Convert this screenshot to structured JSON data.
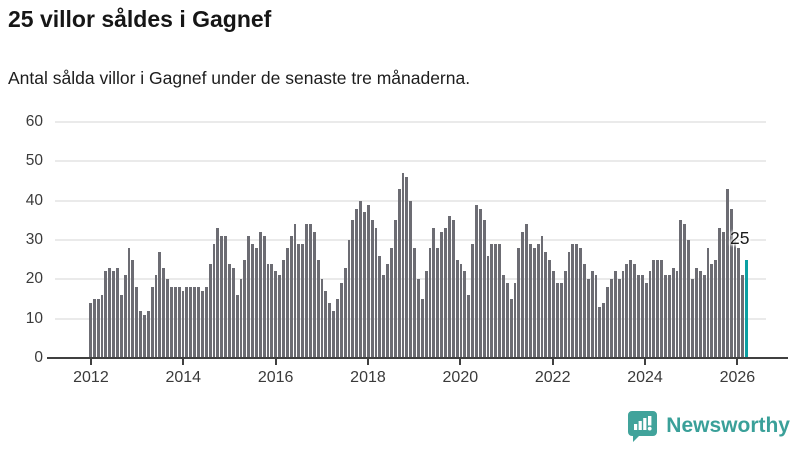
{
  "header": {
    "title": "25 villor såldes i Gagnef",
    "subtitle": "Antal sålda villor i Gagnef under de senaste tre månaderna."
  },
  "chart_data": {
    "type": "bar",
    "title": "25 villor såldes i Gagnef",
    "subtitle": "Antal sålda villor i Gagnef under de senaste tre månaderna.",
    "xlabel": "",
    "ylabel": "",
    "x_start": "2012-01",
    "x_interval": "monthly",
    "ylim": [
      0,
      60
    ],
    "yticks": [
      0,
      10,
      20,
      30,
      40,
      50,
      60
    ],
    "xticks": [
      2012,
      2014,
      2016,
      2018,
      2020,
      2022,
      2024,
      2026
    ],
    "grid": "horizontal",
    "values": [
      14,
      15,
      15,
      16,
      22,
      23,
      22,
      23,
      16,
      21,
      28,
      25,
      18,
      12,
      11,
      12,
      18,
      21,
      27,
      23,
      20,
      18,
      18,
      18,
      17,
      18,
      18,
      18,
      18,
      17,
      18,
      24,
      29,
      33,
      31,
      31,
      24,
      23,
      16,
      20,
      25,
      31,
      29,
      28,
      32,
      31,
      24,
      24,
      22,
      21,
      25,
      28,
      31,
      34,
      29,
      29,
      34,
      34,
      32,
      25,
      20,
      17,
      14,
      12,
      15,
      19,
      23,
      30,
      35,
      38,
      40,
      37,
      39,
      35,
      33,
      26,
      21,
      24,
      28,
      35,
      43,
      47,
      46,
      40,
      28,
      20,
      15,
      22,
      28,
      33,
      28,
      32,
      33,
      36,
      35,
      25,
      24,
      22,
      16,
      29,
      39,
      38,
      35,
      26,
      29,
      29,
      29,
      21,
      19,
      15,
      19,
      28,
      32,
      34,
      29,
      28,
      29,
      31,
      27,
      25,
      22,
      19,
      19,
      22,
      27,
      29,
      29,
      28,
      24,
      20,
      22,
      21,
      13,
      14,
      18,
      20,
      22,
      20,
      22,
      24,
      25,
      24,
      21,
      21,
      19,
      22,
      25,
      25,
      25,
      21,
      21,
      23,
      22,
      35,
      34,
      30,
      20,
      23,
      22,
      21,
      28,
      24,
      25,
      33,
      32,
      43,
      38,
      30,
      28,
      21,
      25
    ],
    "highlight_last": true,
    "annotation": {
      "text": "25",
      "value": 25
    },
    "colors": {
      "bar": "#6c6c73",
      "highlight": "#0ba0a3",
      "grid": "#eaeaea",
      "axis": "#404040",
      "label": "#3a3a3a"
    }
  },
  "footer": {
    "brand": "Newsworthy",
    "brand_color": "#3aa099",
    "logo_color": "#41a39b",
    "logo_icon": "bar-chart-speech-bubble"
  }
}
